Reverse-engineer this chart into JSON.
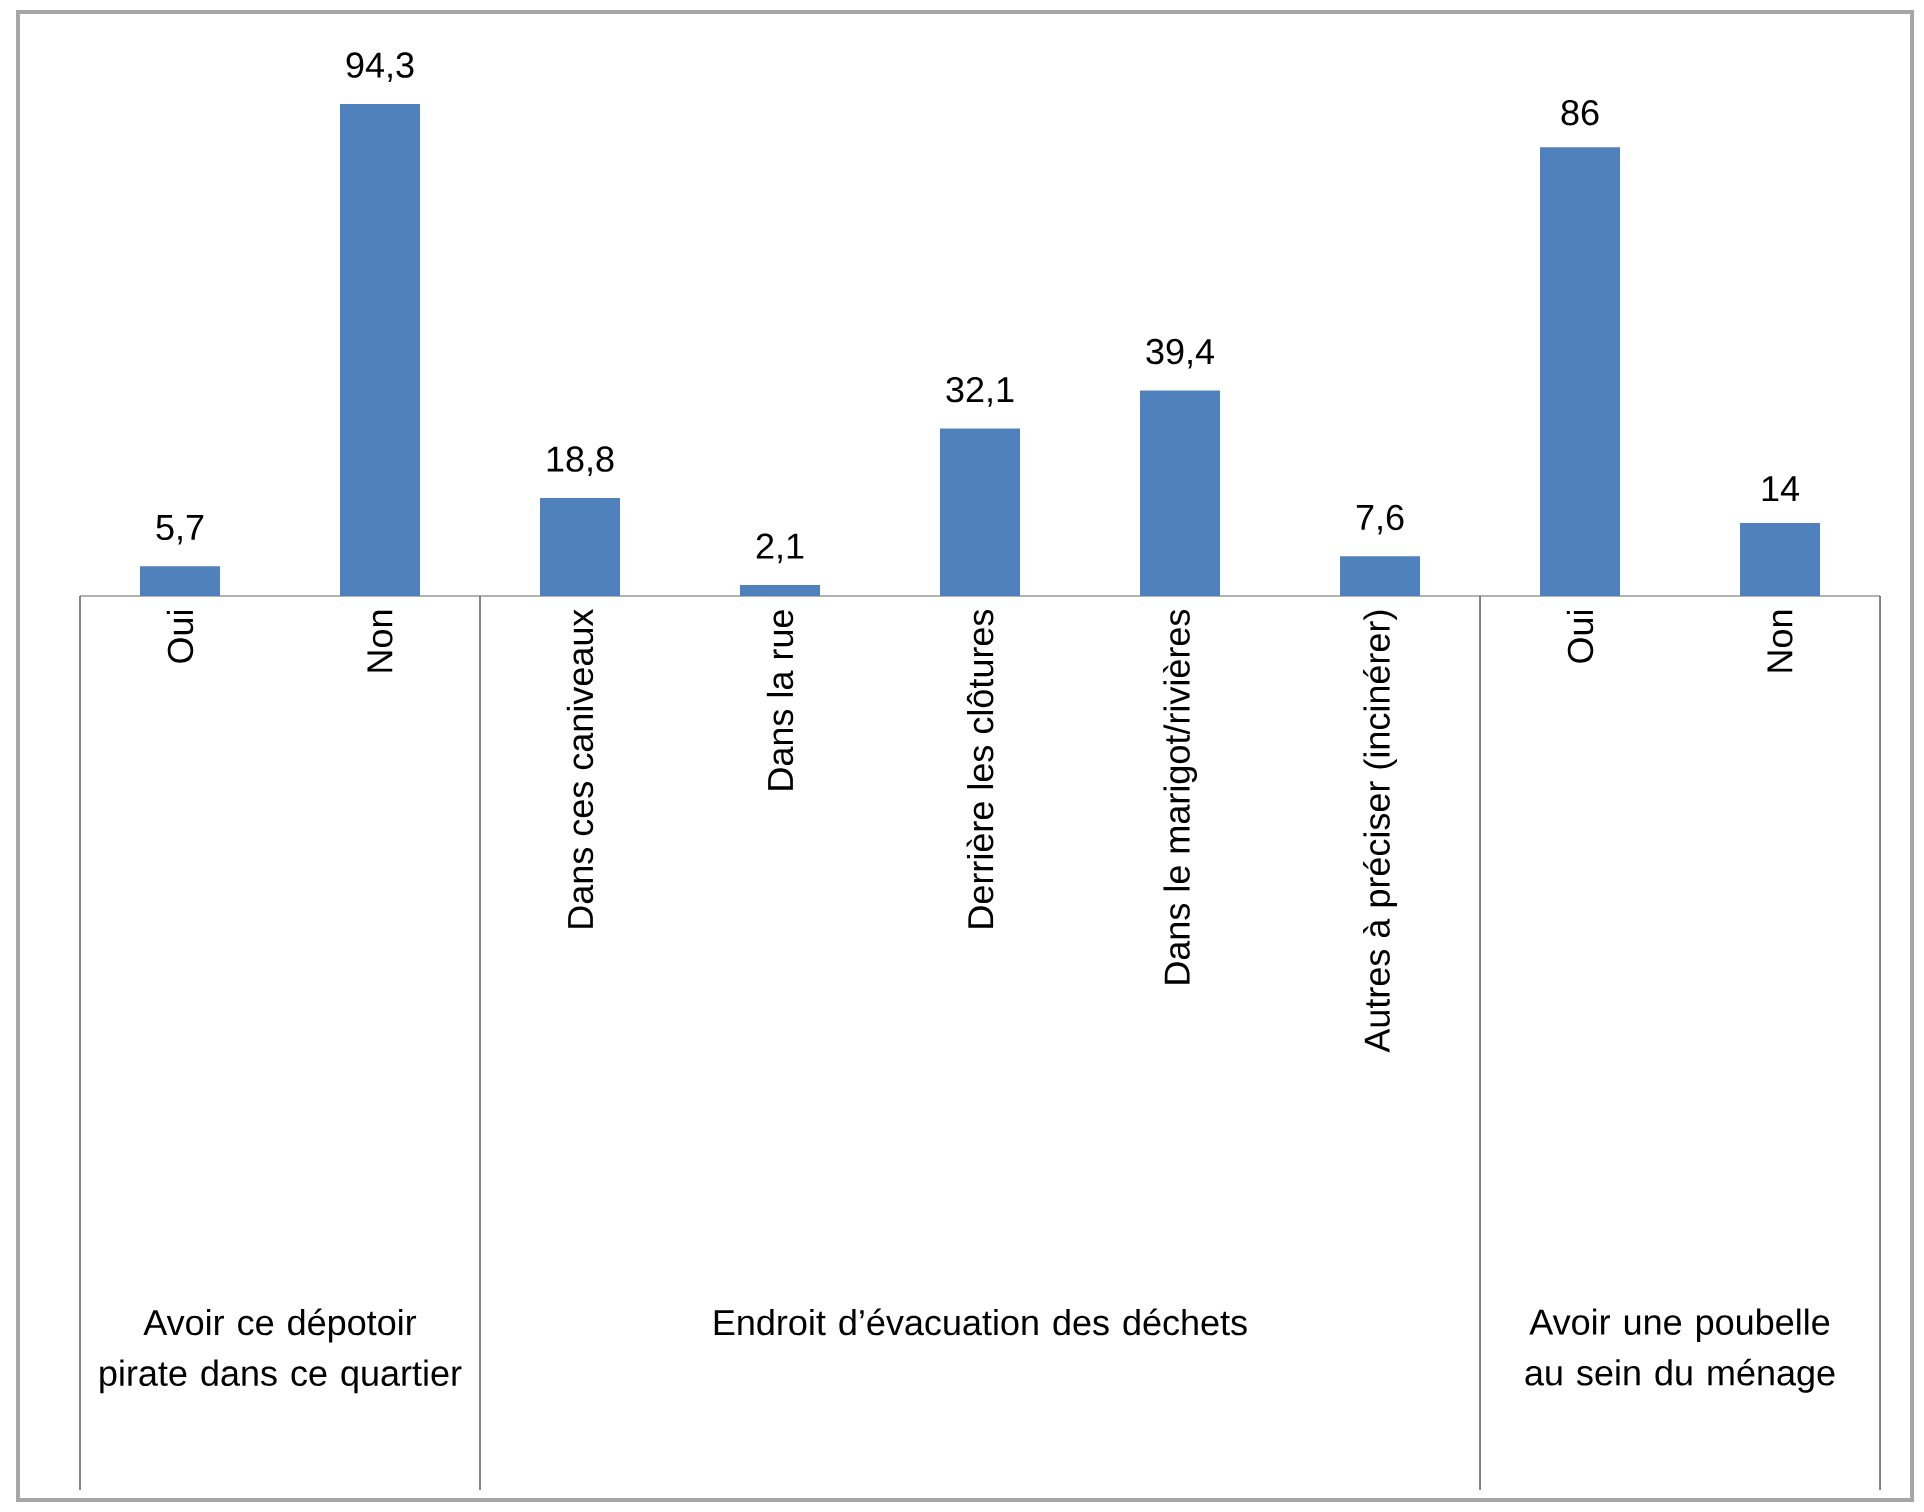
{
  "chart_data": {
    "type": "bar",
    "categories": [
      "Oui",
      "Non",
      "Dans ces caniveaux",
      "Dans la rue",
      "Derrière les clôtures",
      "Dans le marigot/rivières",
      "Autres à préciser (incinérer)",
      "Oui",
      "Non"
    ],
    "values": [
      5.7,
      94.3,
      18.8,
      2.1,
      32.1,
      39.4,
      7.6,
      86,
      14
    ],
    "color": "#4f81bd",
    "value_labels": [
      "5,7",
      "94,3",
      "18,8",
      "2,1",
      "32,1",
      "39,4",
      "7,6",
      "86",
      "14"
    ],
    "annotations": [
      "Avoir ce dépotoir pirate dans ce quartier",
      "Endroit d’évacuation des déchets",
      "Avoir une poubelle au sein du ménage"
    ]
  }
}
